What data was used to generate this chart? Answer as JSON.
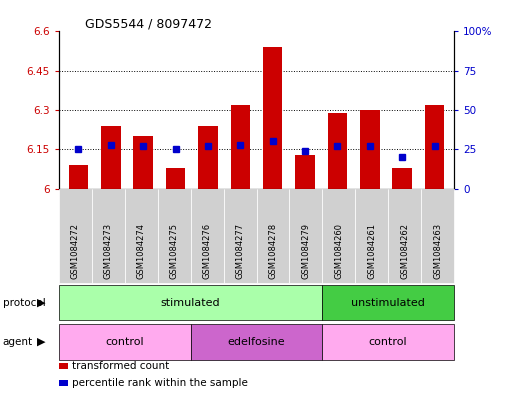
{
  "title": "GDS5544 / 8097472",
  "samples": [
    "GSM1084272",
    "GSM1084273",
    "GSM1084274",
    "GSM1084275",
    "GSM1084276",
    "GSM1084277",
    "GSM1084278",
    "GSM1084279",
    "GSM1084260",
    "GSM1084261",
    "GSM1084262",
    "GSM1084263"
  ],
  "transformed_count": [
    6.09,
    6.24,
    6.2,
    6.08,
    6.24,
    6.32,
    6.54,
    6.13,
    6.29,
    6.3,
    6.08,
    6.32
  ],
  "percentile_rank": [
    25,
    28,
    27,
    25,
    27,
    28,
    30,
    24,
    27,
    27,
    20,
    27
  ],
  "ylim_left": [
    6.0,
    6.6
  ],
  "ylim_right": [
    0,
    100
  ],
  "yticks_left": [
    6.0,
    6.15,
    6.3,
    6.45,
    6.6
  ],
  "ytick_labels_left": [
    "6",
    "6.15",
    "6.3",
    "6.45",
    "6.6"
  ],
  "yticks_right": [
    0,
    25,
    50,
    75,
    100
  ],
  "ytick_labels_right": [
    "0",
    "25",
    "50",
    "75",
    "100%"
  ],
  "bar_color": "#cc0000",
  "dot_color": "#0000cc",
  "bar_width": 0.6,
  "grid_color": "black",
  "protocol_labels": [
    {
      "label": "stimulated",
      "start": 0,
      "end": 8,
      "color": "#aaffaa"
    },
    {
      "label": "unstimulated",
      "start": 8,
      "end": 12,
      "color": "#44cc44"
    }
  ],
  "agent_labels": [
    {
      "label": "control",
      "start": 0,
      "end": 4,
      "color": "#ffaaee"
    },
    {
      "label": "edelfosine",
      "start": 4,
      "end": 8,
      "color": "#cc66cc"
    },
    {
      "label": "control",
      "start": 8,
      "end": 12,
      "color": "#ffaaee"
    }
  ],
  "legend_items": [
    {
      "label": "transformed count",
      "color": "#cc0000"
    },
    {
      "label": "percentile rank within the sample",
      "color": "#0000cc"
    }
  ],
  "bg_color": "#ffffff",
  "axis_color_left": "#cc0000",
  "axis_color_right": "#0000cc",
  "tick_bg_color": "#d0d0d0"
}
